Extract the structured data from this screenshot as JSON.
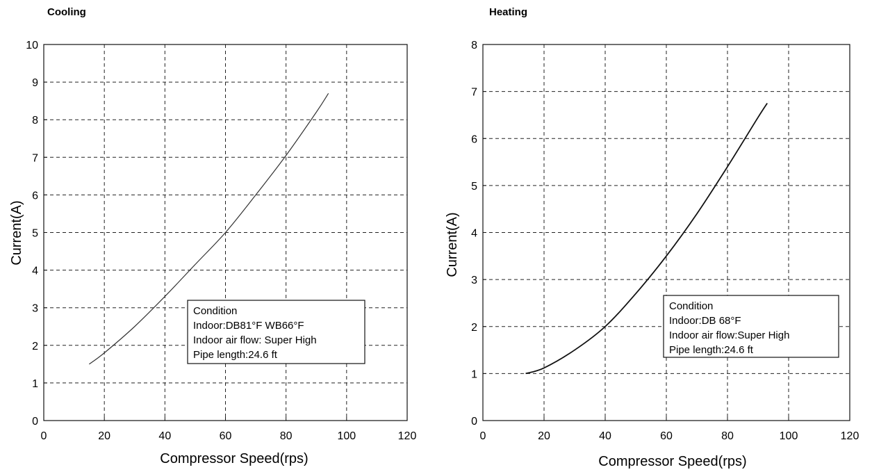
{
  "chart_data": [
    {
      "type": "line",
      "title": "Cooling",
      "xlabel": "Compressor Speed(rps)",
      "ylabel": "Current(A)",
      "xlim": [
        0,
        120
      ],
      "ylim": [
        0,
        10
      ],
      "xticks": [
        "0",
        "20",
        "40",
        "60",
        "80",
        "100",
        "120"
      ],
      "yticks": [
        "0",
        "1",
        "2",
        "3",
        "4",
        "5",
        "6",
        "7",
        "8",
        "9",
        "10"
      ],
      "grid": true,
      "legend_position": "bottom-right",
      "condition_lines": [
        "Condition",
        "Indoor:DB81°F  WB66°F",
        "Indoor air flow: Super High",
        "Pipe length:24.6 ft"
      ],
      "series": [
        {
          "color": "#333333",
          "x": [
            15,
            20,
            30,
            40,
            50,
            60,
            70,
            80,
            90,
            94
          ],
          "y": [
            1.5,
            1.8,
            2.5,
            3.3,
            4.15,
            5.0,
            6.0,
            7.05,
            8.2,
            8.7
          ]
        }
      ]
    },
    {
      "type": "line",
      "title": "Heating",
      "xlabel": "Compressor Speed(rps)",
      "ylabel": "Current(A)",
      "xlim": [
        0,
        120
      ],
      "ylim": [
        0,
        8
      ],
      "xticks": [
        "0",
        "20",
        "40",
        "60",
        "80",
        "100",
        "120"
      ],
      "yticks": [
        "0",
        "1",
        "2",
        "3",
        "4",
        "5",
        "6",
        "7",
        "8"
      ],
      "grid": true,
      "legend_position": "bottom-right",
      "condition_lines": [
        "Condition",
        "Indoor:DB 68°F",
        "Indoor air flow:Super High",
        "Pipe length:24.6 ft"
      ],
      "series": [
        {
          "color": "#111111",
          "x": [
            14,
            20,
            30,
            40,
            50,
            60,
            70,
            80,
            90,
            93
          ],
          "y": [
            1.0,
            1.12,
            1.5,
            2.0,
            2.7,
            3.5,
            4.4,
            5.4,
            6.45,
            6.75
          ]
        }
      ]
    }
  ]
}
